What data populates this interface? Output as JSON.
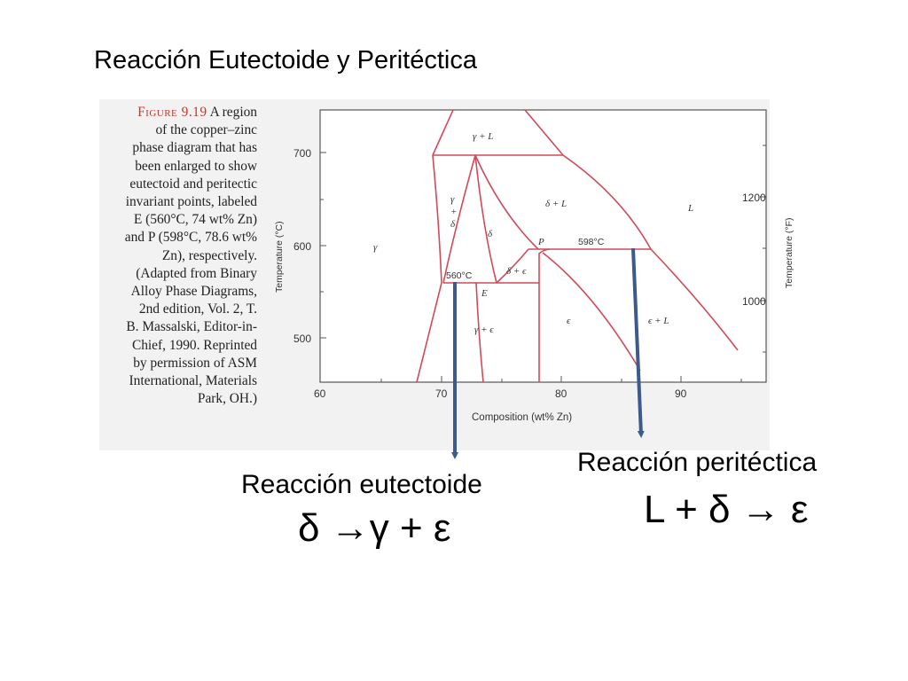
{
  "slide": {
    "title": "Reacción Eutectoide y Peritéctica"
  },
  "caption": {
    "figure_label": "Figure 9.19",
    "lines": [
      "A region",
      "of the copper–zinc",
      "phase diagram that has",
      "been enlarged to show",
      "eutectoid and peritectic",
      "invariant points, labeled",
      "E (560°C, 74 wt% Zn)",
      "and P (598°C, 78.6 wt%",
      "Zn), respectively.",
      "(Adapted from Binary",
      "Alloy Phase Diagrams,",
      "2nd edition, Vol. 2, T.",
      "B. Massalski, Editor-in-",
      "Chief, 1990. Reprinted",
      "by permission of ASM",
      "International, Materials",
      "Park, OH.)"
    ]
  },
  "diagram": {
    "x_axis_label": "Composition (wt% Zn)",
    "y_axis_left_label": "Temperature (°C)",
    "y_axis_right_label": "Temperature (°F)",
    "x_ticks": [
      "60",
      "70",
      "80",
      "90"
    ],
    "y_ticks_left": [
      "700",
      "600",
      "500"
    ],
    "y_ticks_right": [
      "1200",
      "1000"
    ],
    "phase_labels": {
      "gamma_L": "γ + L",
      "gamma_plus_delta_1": "γ",
      "gamma_plus_delta_2": "+",
      "gamma_plus_delta_3": "δ",
      "delta": "δ",
      "delta_L": "δ + L",
      "L": "L",
      "gamma": "γ",
      "P": "P",
      "temp_598": "598°C",
      "temp_560": "560°C",
      "E": "E",
      "delta_epsilon": "δ + ϵ",
      "gamma_epsilon": "γ + ϵ",
      "epsilon": "ϵ",
      "epsilon_L": "ϵ + L"
    },
    "colors": {
      "phase_lines": "#d04a5a",
      "frame": "#555555",
      "arrows": "#3d5a8c"
    }
  },
  "annotations": {
    "eutectoid_title": "Reacción eutectoide",
    "eutectoid_equation": "δ →γ + ε",
    "peritectic_title": "Reacción peritéctica",
    "peritectic_equation": "L + δ → ε"
  }
}
